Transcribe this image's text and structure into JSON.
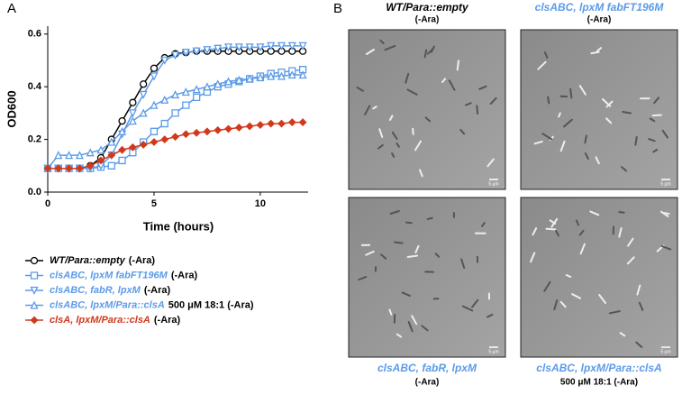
{
  "chart_data": {
    "type": "line",
    "panel_label": "A",
    "x_label": "Time (hours)",
    "y_label": "OD600",
    "x": [
      0,
      0.5,
      1,
      1.5,
      2,
      2.5,
      3,
      3.5,
      4,
      4.5,
      5,
      5.5,
      6,
      6.5,
      7,
      7.5,
      8,
      8.5,
      9,
      9.5,
      10,
      10.5,
      11,
      11.5,
      12
    ],
    "xlim": [
      0,
      12.25
    ],
    "ylim": [
      0,
      0.63
    ],
    "xticks": [
      0,
      5,
      10
    ],
    "yticks": [
      {
        "value": 0,
        "label": "0.0"
      },
      0.2,
      0.4,
      0.6
    ],
    "series": [
      {
        "name": "WT/Para::empty",
        "condition": "(-Ara)",
        "color": "#000000",
        "marker": "circle",
        "values": [
          0.09,
          0.09,
          0.09,
          0.09,
          0.1,
          0.13,
          0.2,
          0.27,
          0.34,
          0.41,
          0.47,
          0.51,
          0.525,
          0.53,
          0.535,
          0.535,
          0.535,
          0.535,
          0.535,
          0.535,
          0.535,
          0.535,
          0.535,
          0.535,
          0.535
        ]
      },
      {
        "name": "clsABC, lpxM fabFT196M",
        "condition": "(-Ara)",
        "color": "#5b9be8",
        "marker": "square",
        "values": [
          0.09,
          0.09,
          0.09,
          0.09,
          0.09,
          0.095,
          0.1,
          0.12,
          0.15,
          0.19,
          0.23,
          0.26,
          0.3,
          0.33,
          0.36,
          0.38,
          0.4,
          0.41,
          0.42,
          0.43,
          0.44,
          0.45,
          0.455,
          0.46,
          0.465
        ]
      },
      {
        "name": "clsABC, fabR, lpxM",
        "condition": "(-Ara)",
        "color": "#5b9be8",
        "marker": "down",
        "values": [
          0.09,
          0.09,
          0.09,
          0.09,
          0.09,
          0.1,
          0.14,
          0.22,
          0.3,
          0.37,
          0.44,
          0.5,
          0.52,
          0.53,
          0.535,
          0.54,
          0.545,
          0.55,
          0.55,
          0.55,
          0.55,
          0.555,
          0.555,
          0.555,
          0.555
        ]
      },
      {
        "name": "clsABC, lpxM/Para::clsA",
        "condition": "500 μM 18:1 (-Ara)",
        "color": "#5b9be8",
        "marker": "up",
        "values": [
          0.09,
          0.14,
          0.14,
          0.14,
          0.15,
          0.16,
          0.19,
          0.23,
          0.27,
          0.3,
          0.33,
          0.35,
          0.37,
          0.38,
          0.39,
          0.4,
          0.41,
          0.42,
          0.425,
          0.43,
          0.435,
          0.44,
          0.44,
          0.445,
          0.445
        ]
      },
      {
        "name": "clsA, lpxM/Para::clsA",
        "condition": "(-Ara)",
        "color": "#d2381c",
        "marker": "diamond",
        "values": [
          0.09,
          0.09,
          0.09,
          0.09,
          0.1,
          0.12,
          0.14,
          0.16,
          0.17,
          0.18,
          0.19,
          0.2,
          0.21,
          0.22,
          0.225,
          0.23,
          0.235,
          0.24,
          0.245,
          0.25,
          0.255,
          0.26,
          0.26,
          0.265,
          0.265
        ]
      }
    ]
  },
  "image_panel": {
    "label": "B",
    "panels": [
      {
        "title": "WT/Para::empty",
        "condition": "(-Ara)",
        "color": "#000000",
        "scale_bar": "5 µm"
      },
      {
        "title": "clsABC, lpxM fabFT196M",
        "condition": "(-Ara)",
        "color": "#5b9be8",
        "scale_bar": "5 µm"
      },
      {
        "title": "clsABC, fabR, lpxM",
        "condition": "(-Ara)",
        "color": "#5b9be8",
        "scale_bar": "5 µm"
      },
      {
        "title": "clsABC, lpxM/Para::clsA",
        "condition": "500 μM 18:1 (-Ara)",
        "color": "#5b9be8",
        "scale_bar": "5 µm"
      }
    ]
  }
}
